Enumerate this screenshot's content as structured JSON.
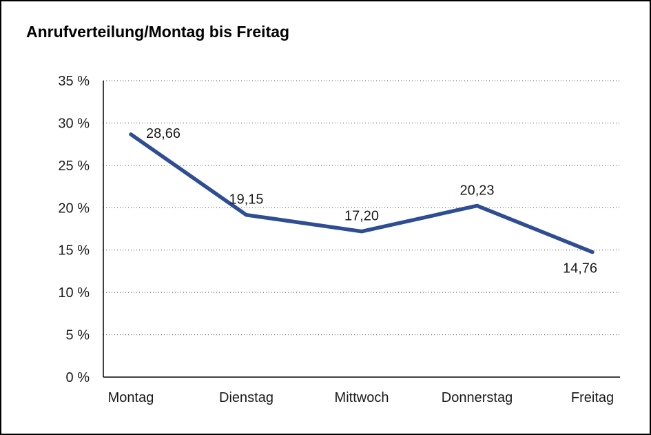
{
  "chart_data": {
    "type": "line",
    "title": "Anrufverteilung/Montag bis Freitag",
    "categories": [
      "Montag",
      "Dienstag",
      "Mittwoch",
      "Donnerstag",
      "Freitag"
    ],
    "values": [
      28.66,
      19.15,
      17.2,
      20.23,
      14.76
    ],
    "value_labels": [
      "28,66",
      "19,15",
      "17,20",
      "20,23",
      "14,76"
    ],
    "label_positions": [
      "right",
      "above",
      "above",
      "above",
      "below"
    ],
    "ytick_labels": [
      "0 %",
      "5 %",
      "10 %",
      "15 %",
      "20 %",
      "25 %",
      "30 %",
      "35 %"
    ],
    "ylim": [
      0,
      35
    ],
    "ytick_step": 5,
    "xlabel": "",
    "ylabel": "",
    "grid": "dotted-horizontal",
    "legend": "none",
    "line_color": "#2E4D93",
    "axis_color": "#000000",
    "grid_color": "#4a4a4a"
  }
}
